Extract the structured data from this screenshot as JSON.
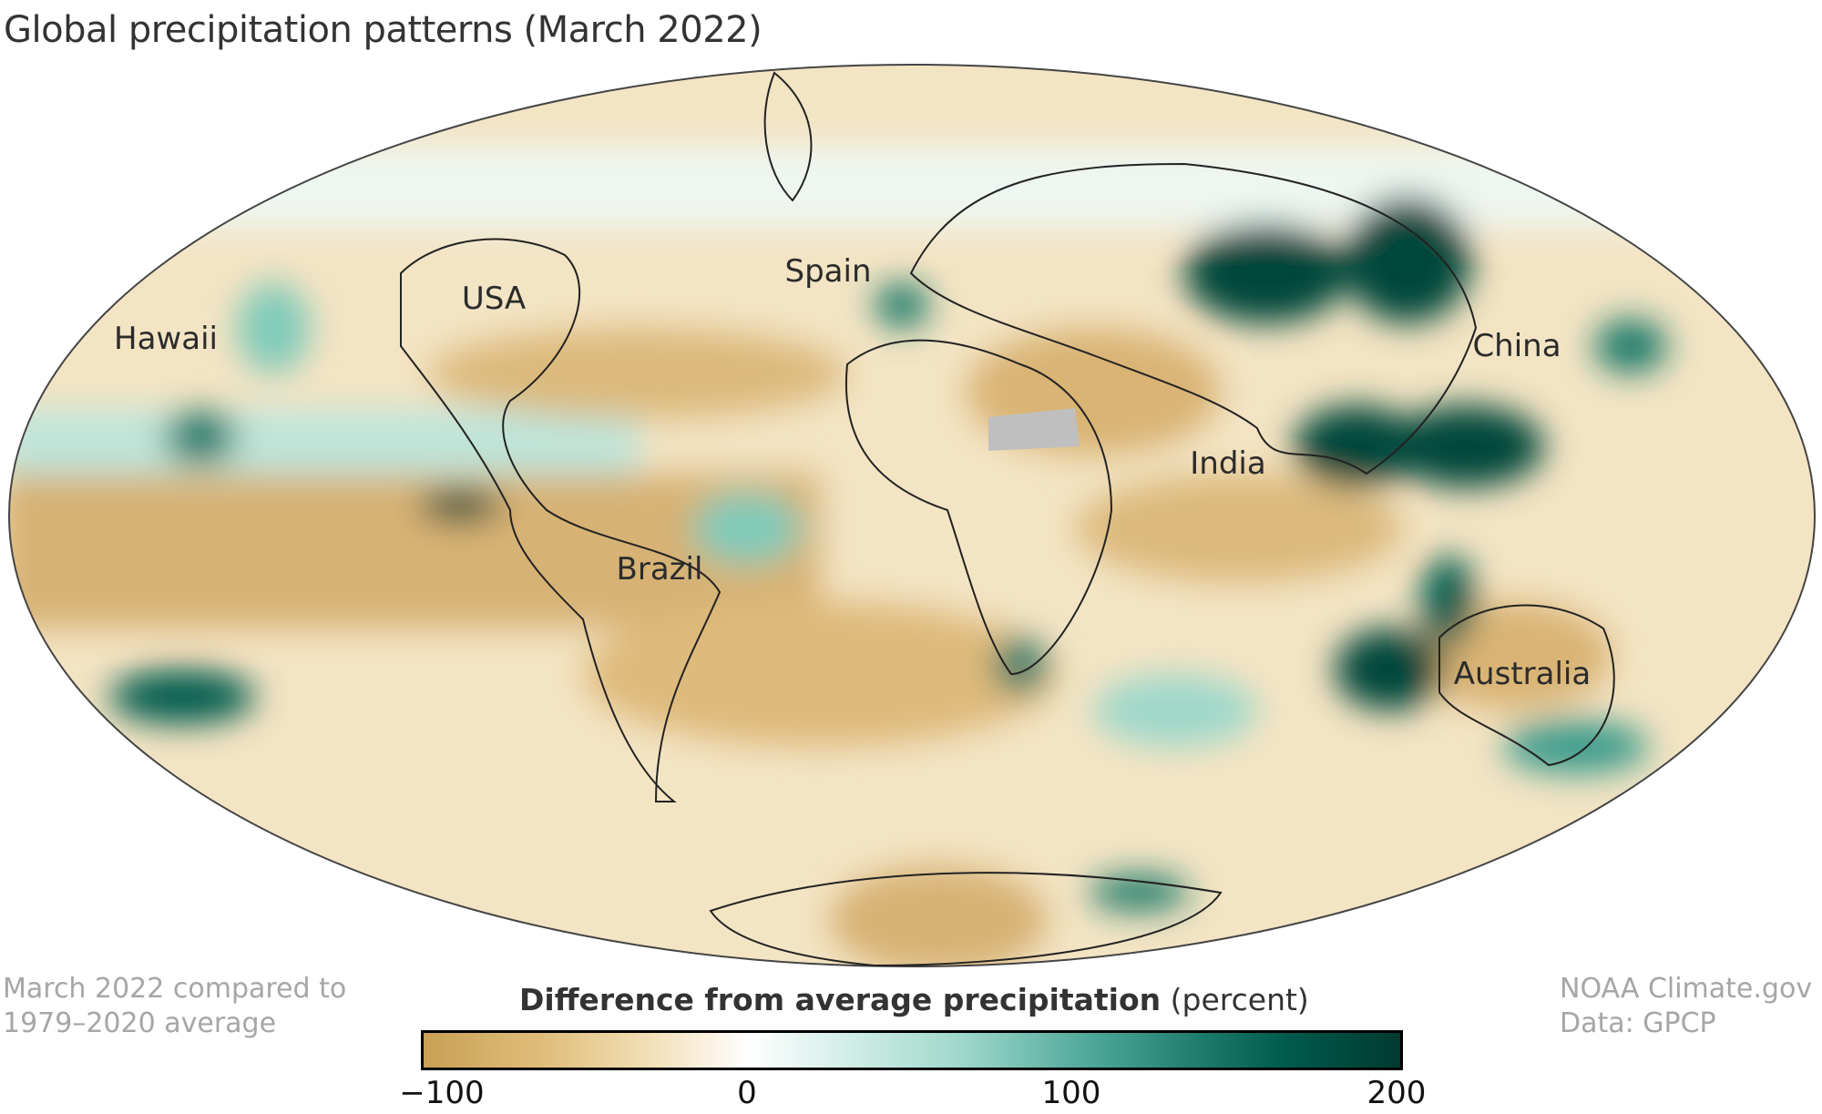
{
  "title": "Global precipitation patterns (March 2022)",
  "map_labels": {
    "hawaii": "Hawaii",
    "usa": "USA",
    "spain": "Spain",
    "china": "China",
    "india": "India",
    "brazil": "Brazil",
    "australia": "Australia"
  },
  "note_left": {
    "line1": "March 2022 compared to",
    "line2": "1979–2020 average"
  },
  "note_right": {
    "line1": "NOAA Climate.gov",
    "line2": "Data: GPCP"
  },
  "colorbar": {
    "title_bold": "Difference from average precipitation",
    "title_unit": "(percent)",
    "ticks": [
      "−100",
      "0",
      "100",
      "200"
    ],
    "range": [
      -100,
      200
    ],
    "colors": {
      "dry": "#c9a054",
      "neutral": "#ffffff",
      "wet": "#003a30"
    }
  }
}
